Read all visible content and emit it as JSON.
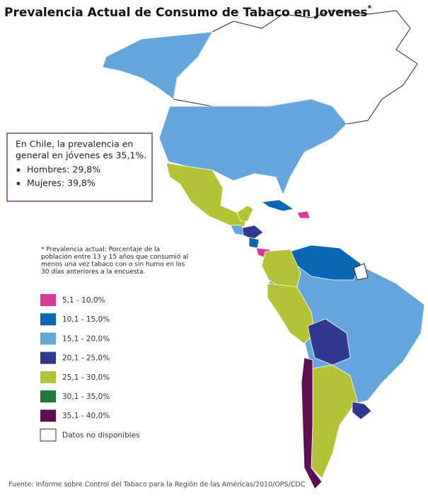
{
  "title": "Prevalencia Actual de Consumo de Tabaco en Jovenes",
  "title_mark": "*",
  "infobox": {
    "lines": [
      "En Chile, la prevalencia en",
      "general en jóvenes es 35,1%."
    ],
    "bullets": [
      "Hombres: 29,8%",
      "Mujeres: 39,8%"
    ]
  },
  "note": [
    "* Prevalencia actual: Porcentaje de la",
    "población entre 13 y  15 años que consumió al",
    "menos una vez tabaco con o sin humo en los",
    "30 días anteriores a la encuesta."
  ],
  "legend": [
    {
      "label": "5,1 - 10,0%",
      "color": "#d8399a"
    },
    {
      "label": "10,1 - 15,0%",
      "color": "#0a67b5"
    },
    {
      "label": "15,1 - 20,0%",
      "color": "#62a6dd"
    },
    {
      "label": "20,1 - 25,0%",
      "color": "#2f3990"
    },
    {
      "label": "25,1 - 30,0%",
      "color": "#b4c236"
    },
    {
      "label": "30,1 - 35,0%",
      "color": "#1f7a3b"
    },
    {
      "label": "35,1 - 40,0%",
      "color": "#5d0f52"
    },
    {
      "label": "Datos no disponibles",
      "color": "#ffffff"
    }
  ],
  "source": "Fuente: Informe sobre Control del Tabaco para la Región de las Américas/2010/OPS/CDC"
}
